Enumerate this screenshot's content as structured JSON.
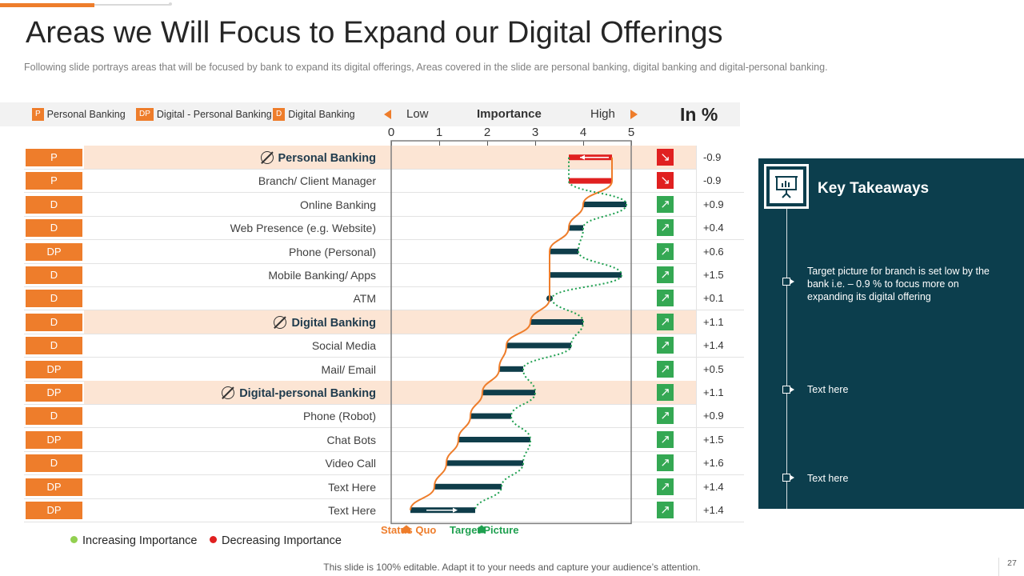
{
  "title": "Areas we Will Focus to Expand our Digital Offerings",
  "subtitle": "Following slide portrays areas that will be focused by bank to expand its digital offerings, Areas covered in the slide are personal banking, digital banking and digital-personal banking.",
  "legend": {
    "personal_code": "P",
    "personal_label": "Personal Banking",
    "dp_code": "DP",
    "dp_label": "Digital - Personal Banking",
    "digital_code": "D",
    "digital_label": "Digital Banking",
    "low": "Low",
    "importance": "Importance",
    "high": "High",
    "in_pct": "In %"
  },
  "chart_data": {
    "type": "dumbbell",
    "title": "Importance",
    "x_axis": {
      "ticks": [
        "0",
        "1",
        "2",
        "3",
        "4",
        "5"
      ],
      "range": [
        0,
        5
      ],
      "low_label": "Low",
      "high_label": "High"
    },
    "series_names": [
      "Status Quo",
      "Target Picture"
    ],
    "rows": [
      {
        "code": "P",
        "label": "Personal Banking",
        "header": true,
        "status_quo": 4.6,
        "target": 3.7,
        "change": "-0.9",
        "direction": "down"
      },
      {
        "code": "P",
        "label": "Branch/ Client Manager",
        "header": false,
        "status_quo": 4.6,
        "target": 3.7,
        "change": "-0.9",
        "direction": "down"
      },
      {
        "code": "D",
        "label": "Online Banking",
        "header": false,
        "status_quo": 4.0,
        "target": 4.9,
        "change": "+0.9",
        "direction": "up"
      },
      {
        "code": "D",
        "label": "Web Presence (e.g. Website)",
        "header": false,
        "status_quo": 3.7,
        "target": 4.0,
        "change": "+0.4",
        "direction": "up"
      },
      {
        "code": "DP",
        "label": "Phone (Personal)",
        "header": false,
        "status_quo": 3.3,
        "target": 3.9,
        "change": "+0.6",
        "direction": "up"
      },
      {
        "code": "D",
        "label": "Mobile Banking/ Apps",
        "header": false,
        "status_quo": 3.3,
        "target": 4.8,
        "change": "+1.5",
        "direction": "up"
      },
      {
        "code": "D",
        "label": "ATM",
        "header": false,
        "status_quo": 3.3,
        "target": 3.35,
        "change": "+0.1",
        "direction": "up"
      },
      {
        "code": "D",
        "label": "Digital Banking",
        "header": true,
        "status_quo": 2.9,
        "target": 4.0,
        "change": "+1.1",
        "direction": "up"
      },
      {
        "code": "D",
        "label": "Social Media",
        "header": false,
        "status_quo": 2.4,
        "target": 3.75,
        "change": "+1.4",
        "direction": "up"
      },
      {
        "code": "DP",
        "label": "Mail/ Email",
        "header": false,
        "status_quo": 2.25,
        "target": 2.75,
        "change": "+0.5",
        "direction": "up"
      },
      {
        "code": "DP",
        "label": "Digital-personal Banking",
        "header": true,
        "status_quo": 1.9,
        "target": 3.0,
        "change": "+1.1",
        "direction": "up"
      },
      {
        "code": "D",
        "label": "Phone (Robot)",
        "header": false,
        "status_quo": 1.65,
        "target": 2.5,
        "change": "+0.9",
        "direction": "up"
      },
      {
        "code": "DP",
        "label": "Chat Bots",
        "header": false,
        "status_quo": 1.4,
        "target": 2.9,
        "change": "+1.5",
        "direction": "up"
      },
      {
        "code": "D",
        "label": "Video Call",
        "header": false,
        "status_quo": 1.15,
        "target": 2.75,
        "change": "+1.6",
        "direction": "up"
      },
      {
        "code": "DP",
        "label": "Text Here",
        "header": false,
        "status_quo": 0.9,
        "target": 2.3,
        "change": "+1.4",
        "direction": "up"
      },
      {
        "code": "DP",
        "label": "Text Here",
        "header": false,
        "status_quo": 0.4,
        "target": 1.75,
        "change": "+1.4",
        "direction": "up"
      }
    ],
    "colors": {
      "status_quo": "#ee7d2b",
      "target": "#1fa050",
      "bar": "#0f3d4a",
      "decrease_bar": "#e02020"
    }
  },
  "axis_labels": {
    "status_quo": "Status Quo",
    "target": "Target Picture"
  },
  "bottom_legend": {
    "increasing": "Increasing Importance",
    "decreasing": "Decreasing Importance",
    "increasing_color": "#92d050",
    "decreasing_color": "#e02020"
  },
  "takeaways": {
    "title": "Key Takeaways",
    "items": [
      "Target picture for branch is set low by the bank i.e. – 0.9 % to focus more on expanding its digital offering",
      "Text here",
      "Text here"
    ]
  },
  "footer": "This slide is 100% editable. Adapt it to your needs and capture your audience’s attention.",
  "page_number": "27"
}
